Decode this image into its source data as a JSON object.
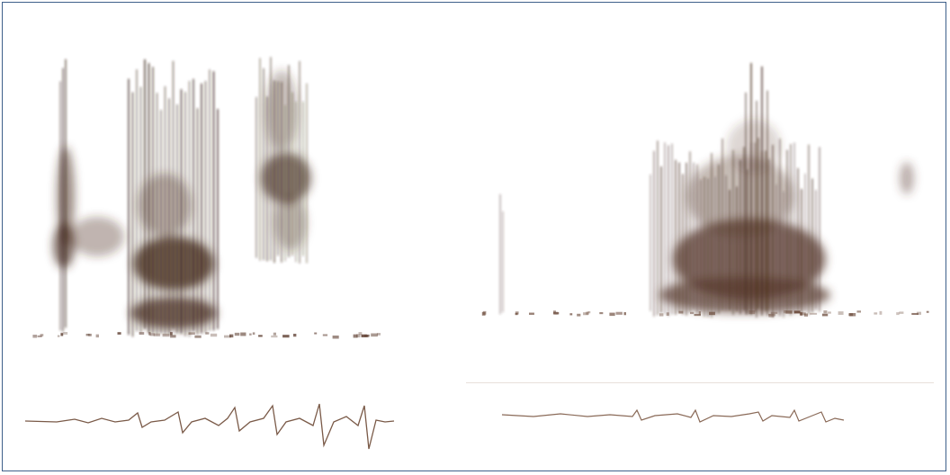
{
  "figure": {
    "panels": [
      {
        "id": "left",
        "kind": "spectrogram-with-waveform"
      },
      {
        "id": "right",
        "kind": "spectrogram-with-waveform"
      }
    ],
    "colors": {
      "ink_dark": "#3a2418",
      "ink_mid": "#6b4a3a",
      "ink_light": "#b49a8a",
      "frame": "#3e5f8a",
      "background": "#ffffff"
    }
  }
}
